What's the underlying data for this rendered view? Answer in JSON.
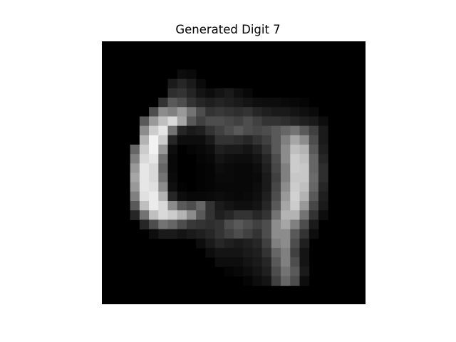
{
  "figure": {
    "title": "Generated Digit 7"
  },
  "chart_data": {
    "type": "heatmap",
    "title": "Generated Digit 7",
    "colormap": "gray",
    "value_range": [
      0,
      1
    ],
    "axes_visible": false,
    "grid": false,
    "rows": 28,
    "cols": 28,
    "values": [
      [
        0,
        0,
        0,
        0,
        0,
        0,
        0,
        0,
        0,
        0,
        0,
        0,
        0,
        0,
        0,
        0,
        0,
        0,
        0,
        0,
        0,
        0,
        0,
        0,
        0,
        0,
        0,
        0
      ],
      [
        0,
        0,
        0,
        0,
        0,
        0,
        0,
        0,
        0,
        0,
        0,
        0,
        0,
        0,
        0,
        0,
        0,
        0,
        0,
        0,
        0,
        0,
        0,
        0,
        0,
        0,
        0,
        0
      ],
      [
        0,
        0,
        0,
        0,
        0,
        0,
        0,
        0,
        0,
        0,
        0,
        0,
        0,
        0,
        0,
        0,
        0,
        0,
        0,
        0,
        0,
        0,
        0,
        0,
        0,
        0,
        0,
        0
      ],
      [
        0,
        0,
        0,
        0,
        0,
        0,
        0,
        0,
        0.05,
        0.04,
        0,
        0,
        0,
        0,
        0,
        0,
        0,
        0,
        0,
        0,
        0,
        0,
        0,
        0,
        0,
        0,
        0,
        0
      ],
      [
        0,
        0,
        0,
        0,
        0,
        0,
        0,
        0.1,
        0.15,
        0.1,
        0.04,
        0,
        0,
        0,
        0,
        0,
        0,
        0,
        0,
        0,
        0,
        0,
        0,
        0,
        0,
        0,
        0,
        0
      ],
      [
        0,
        0,
        0,
        0,
        0,
        0,
        0,
        0.18,
        0.2,
        0.14,
        0.08,
        0.05,
        0.08,
        0.1,
        0.06,
        0.03,
        0,
        0,
        0,
        0,
        0,
        0,
        0,
        0,
        0,
        0,
        0,
        0
      ],
      [
        0,
        0,
        0,
        0,
        0,
        0,
        0.2,
        0.35,
        0.3,
        0.2,
        0.15,
        0.12,
        0.14,
        0.12,
        0.1,
        0.08,
        0.06,
        0.05,
        0.05,
        0.04,
        0.03,
        0.02,
        0,
        0,
        0,
        0,
        0,
        0
      ],
      [
        0,
        0,
        0,
        0,
        0,
        0.3,
        0.55,
        0.5,
        0.6,
        0.45,
        0.3,
        0.2,
        0.22,
        0.2,
        0.18,
        0.2,
        0.15,
        0.12,
        0.1,
        0.1,
        0.08,
        0.06,
        0.04,
        0,
        0,
        0,
        0,
        0
      ],
      [
        0,
        0,
        0,
        0,
        0.35,
        0.6,
        0.75,
        0.85,
        0.65,
        0.35,
        0.25,
        0.3,
        0.3,
        0.28,
        0.25,
        0.3,
        0.25,
        0.2,
        0.2,
        0.18,
        0.15,
        0.12,
        0.1,
        0.05,
        0,
        0,
        0,
        0
      ],
      [
        0,
        0,
        0,
        0,
        0.55,
        0.8,
        0.9,
        0.45,
        0.15,
        0.1,
        0.12,
        0.2,
        0.25,
        0.3,
        0.35,
        0.3,
        0.28,
        0.3,
        0.35,
        0.4,
        0.45,
        0.35,
        0.25,
        0.1,
        0,
        0,
        0,
        0
      ],
      [
        0,
        0,
        0,
        0,
        0.7,
        0.95,
        0.8,
        0.15,
        0.05,
        0.05,
        0.05,
        0.1,
        0.2,
        0.2,
        0.18,
        0.15,
        0.2,
        0.25,
        0.35,
        0.5,
        0.65,
        0.55,
        0.3,
        0.1,
        0,
        0,
        0,
        0
      ],
      [
        0,
        0,
        0,
        0.4,
        0.8,
        0.95,
        0.6,
        0.05,
        0,
        0.02,
        0.03,
        0.05,
        0.12,
        0.1,
        0.1,
        0.08,
        0.12,
        0.2,
        0.35,
        0.55,
        0.75,
        0.7,
        0.35,
        0.12,
        0,
        0,
        0,
        0
      ],
      [
        0,
        0,
        0,
        0.5,
        0.85,
        0.9,
        0.45,
        0.03,
        0,
        0,
        0.02,
        0.03,
        0.08,
        0.06,
        0.05,
        0.05,
        0.08,
        0.15,
        0.3,
        0.55,
        0.8,
        0.75,
        0.4,
        0.15,
        0,
        0,
        0,
        0
      ],
      [
        0,
        0,
        0,
        0.6,
        0.9,
        0.85,
        0.4,
        0.03,
        0,
        0,
        0.01,
        0.02,
        0.05,
        0.04,
        0.03,
        0.03,
        0.05,
        0.12,
        0.28,
        0.5,
        0.8,
        0.78,
        0.4,
        0.18,
        0,
        0,
        0,
        0
      ],
      [
        0,
        0,
        0,
        0.65,
        0.9,
        0.85,
        0.45,
        0.04,
        0,
        0,
        0.01,
        0.02,
        0.04,
        0.04,
        0.03,
        0.03,
        0.04,
        0.1,
        0.25,
        0.5,
        0.78,
        0.78,
        0.42,
        0.18,
        0,
        0,
        0,
        0
      ],
      [
        0,
        0,
        0,
        0.6,
        0.9,
        0.88,
        0.55,
        0.06,
        0.01,
        0,
        0.01,
        0.02,
        0.03,
        0.03,
        0.03,
        0.03,
        0.05,
        0.1,
        0.28,
        0.55,
        0.8,
        0.75,
        0.4,
        0.15,
        0,
        0,
        0,
        0
      ],
      [
        0,
        0,
        0,
        0.5,
        0.88,
        0.92,
        0.7,
        0.15,
        0.05,
        0.03,
        0.03,
        0.04,
        0.05,
        0.04,
        0.03,
        0.04,
        0.06,
        0.12,
        0.3,
        0.6,
        0.82,
        0.7,
        0.35,
        0.12,
        0,
        0,
        0,
        0
      ],
      [
        0,
        0,
        0,
        0.35,
        0.75,
        0.92,
        0.85,
        0.55,
        0.35,
        0.3,
        0.4,
        0.2,
        0.1,
        0.08,
        0.06,
        0.06,
        0.08,
        0.15,
        0.35,
        0.65,
        0.8,
        0.6,
        0.28,
        0.1,
        0,
        0,
        0,
        0
      ],
      [
        0,
        0,
        0,
        0.15,
        0.45,
        0.75,
        0.85,
        0.8,
        0.7,
        0.55,
        0.35,
        0.2,
        0.12,
        0.15,
        0.2,
        0.2,
        0.15,
        0.2,
        0.45,
        0.7,
        0.7,
        0.45,
        0.2,
        0.05,
        0,
        0,
        0,
        0
      ],
      [
        0,
        0,
        0,
        0,
        0.15,
        0.3,
        0.45,
        0.4,
        0.3,
        0.22,
        0.2,
        0.18,
        0.2,
        0.3,
        0.35,
        0.3,
        0.25,
        0.3,
        0.55,
        0.65,
        0.5,
        0.3,
        0.1,
        0,
        0,
        0,
        0,
        0
      ],
      [
        0,
        0,
        0,
        0,
        0,
        0.05,
        0.1,
        0.1,
        0.08,
        0.1,
        0.12,
        0.15,
        0.2,
        0.25,
        0.3,
        0.25,
        0.2,
        0.3,
        0.55,
        0.55,
        0.35,
        0.2,
        0.05,
        0,
        0,
        0,
        0,
        0
      ],
      [
        0,
        0,
        0,
        0,
        0,
        0,
        0,
        0,
        0,
        0,
        0.05,
        0.1,
        0.15,
        0.12,
        0.1,
        0.12,
        0.15,
        0.25,
        0.5,
        0.55,
        0.3,
        0.12,
        0,
        0,
        0,
        0,
        0,
        0
      ],
      [
        0,
        0,
        0,
        0,
        0,
        0,
        0,
        0,
        0,
        0,
        0,
        0.05,
        0.08,
        0.08,
        0.08,
        0.1,
        0.12,
        0.2,
        0.4,
        0.5,
        0.25,
        0.08,
        0,
        0,
        0,
        0,
        0,
        0
      ],
      [
        0,
        0,
        0,
        0,
        0,
        0,
        0,
        0,
        0,
        0,
        0,
        0,
        0.05,
        0.05,
        0.05,
        0.08,
        0.1,
        0.15,
        0.35,
        0.5,
        0.3,
        0.08,
        0,
        0,
        0,
        0,
        0,
        0
      ],
      [
        0,
        0,
        0,
        0,
        0,
        0,
        0,
        0,
        0,
        0,
        0,
        0,
        0,
        0.02,
        0.03,
        0.05,
        0.08,
        0.12,
        0.3,
        0.45,
        0.35,
        0.1,
        0,
        0,
        0,
        0,
        0,
        0
      ],
      [
        0,
        0,
        0,
        0,
        0,
        0,
        0,
        0,
        0,
        0,
        0,
        0,
        0,
        0,
        0,
        0.02,
        0.05,
        0.08,
        0.25,
        0.4,
        0.3,
        0.05,
        0,
        0,
        0,
        0,
        0,
        0
      ],
      [
        0,
        0,
        0,
        0,
        0,
        0,
        0,
        0,
        0,
        0,
        0,
        0,
        0,
        0,
        0,
        0,
        0,
        0,
        0,
        0,
        0,
        0,
        0,
        0,
        0,
        0,
        0,
        0
      ],
      [
        0,
        0,
        0,
        0,
        0,
        0,
        0,
        0,
        0,
        0,
        0,
        0,
        0,
        0,
        0,
        0,
        0,
        0,
        0,
        0,
        0,
        0,
        0,
        0,
        0,
        0,
        0,
        0
      ]
    ]
  }
}
